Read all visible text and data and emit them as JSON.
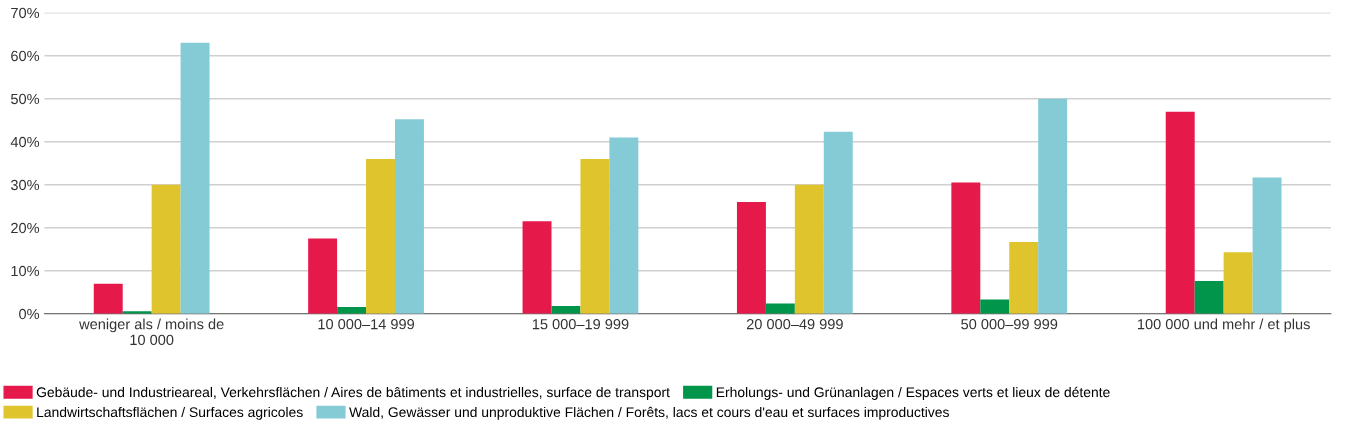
{
  "chart_data": {
    "type": "bar",
    "categories": [
      "weniger als / moins de\n10 000",
      "10 000–14 999",
      "15 000–19 999",
      "20 000–49 999",
      "50 000–99 999",
      "100 000 und mehr / et plus"
    ],
    "series": [
      {
        "name": "Gebäude- und Industrieareal, Verkehrsflächen / Aires de bâtiments et industrielles, surface de transport",
        "color": "#e6194b",
        "values": [
          7,
          17.5,
          21.5,
          26,
          30.5,
          47
        ]
      },
      {
        "name": "Erholungs- und Grünanlagen / Espaces verts et lieux de détente",
        "color": "#00954a",
        "values": [
          0.6,
          1.6,
          1.8,
          2.4,
          3.3,
          7.6
        ]
      },
      {
        "name": "Landwirtschaftsflächen / Surfaces agricoles",
        "color": "#dfc42d",
        "values": [
          30,
          36,
          36,
          30,
          16.7,
          14.3
        ]
      },
      {
        "name": "Wald, Gewässer und unproduktive Flächen / Forêts, lacs et cours d'eau et surfaces improductives",
        "color": "#84cbd6",
        "values": [
          63,
          45.2,
          41,
          42.3,
          50,
          31.7
        ]
      }
    ],
    "ylim": [
      0,
      70
    ],
    "yticks": [
      {
        "value": 0,
        "label": "0%"
      },
      {
        "value": 10,
        "label": "10%"
      },
      {
        "value": 20,
        "label": "20%"
      },
      {
        "value": 30,
        "label": "30%"
      },
      {
        "value": 40,
        "label": "40%"
      },
      {
        "value": 50,
        "label": "50%"
      },
      {
        "value": 60,
        "label": "60%"
      },
      {
        "value": 70,
        "label": "70%"
      }
    ],
    "grid": "y",
    "legend": "bottom"
  }
}
